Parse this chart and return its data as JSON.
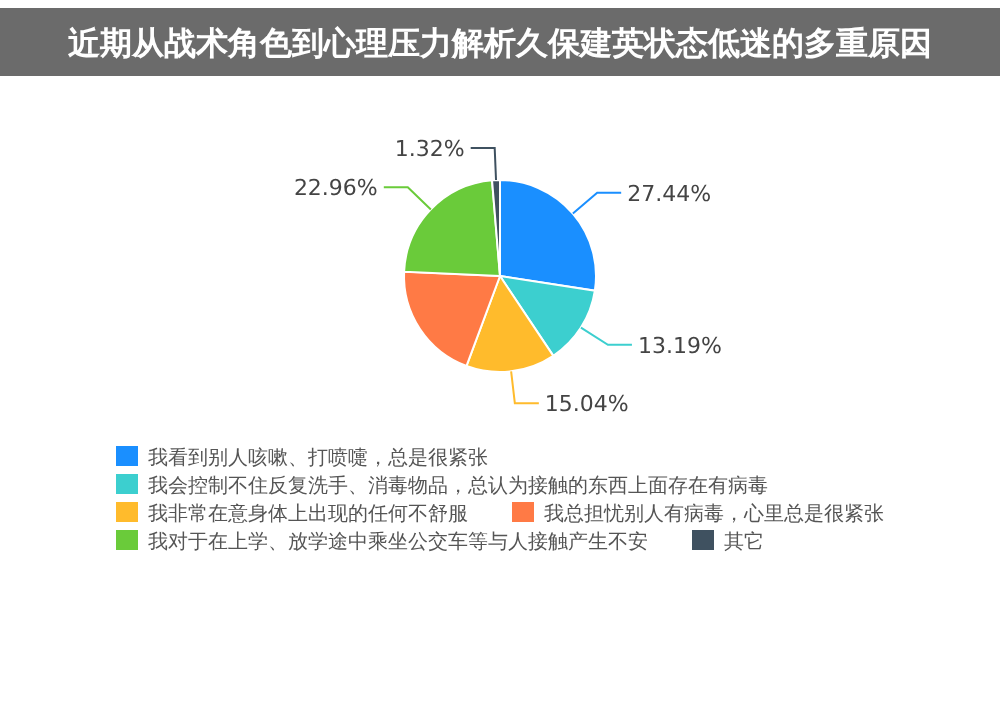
{
  "chart_data": {
    "type": "pie",
    "title": "近期从战术角色到心理压力解析久保建英状态低迷的多重原因",
    "categories": [
      "我看到别人咳嗽、打喷嚏，总是很紧张",
      "我会控制不住反复洗手、消毒物品，总认为接触的东西上面存在有病毒",
      "我非常在意身体上出现的任何不舒服",
      "我总担忧别人有病毒，心里总是很紧张",
      "我对于在上学、放学途中乘坐公交车等与人接触产生不安",
      "其它"
    ],
    "values": [
      27.44,
      13.19,
      15.04,
      20.05,
      22.96,
      1.32
    ],
    "value_labels": [
      "27.44%",
      "13.19%",
      "15.04%",
      null,
      "22.96%",
      "1.32%"
    ],
    "colors": [
      "#1a8fff",
      "#3ccfcf",
      "#ffbb2c",
      "#ff7a45",
      "#6acb3a",
      "#3f5160"
    ],
    "legend": "bottom"
  }
}
